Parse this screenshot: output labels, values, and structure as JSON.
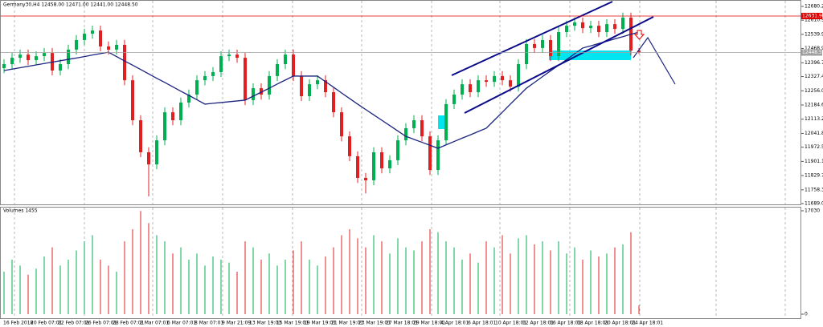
{
  "chart_data": {
    "type": "candlestick",
    "title": "Germany30,H4  12458.00 12471.00 12441.00 12448.50",
    "up_color": "#00b050",
    "down_color": "#e02020",
    "open": [
      12370,
      12390,
      12422,
      12438,
      12410,
      12430,
      12446,
      12358,
      12390,
      12463,
      12511,
      12543,
      12559,
      12479,
      12463,
      12487,
      12309,
      12108,
      11947,
      11886,
      12007,
      12148,
      12108,
      12197,
      12237,
      12309,
      12330,
      12350,
      12430,
      12438,
      12422,
      12209,
      12269,
      12237,
      12330,
      12390,
      12438,
      12330,
      12229,
      12289,
      12309,
      12249,
      12148,
      12027,
      11927,
      11818,
      11806,
      11947,
      11866,
      11907,
      12007,
      12068,
      12108,
      12027,
      11858,
      12007,
      12189,
      12237,
      12289,
      12249,
      12309,
      12301,
      12330,
      12309,
      12277,
      12390,
      12491,
      12471,
      12511,
      12430,
      12551,
      12583,
      12600,
      12571,
      12583,
      12551,
      12591,
      12567,
      12624,
      12458
    ],
    "high": [
      12415,
      12447,
      12463,
      12463,
      12455,
      12471,
      12471,
      12415,
      12488,
      12536,
      12568,
      12584,
      12584,
      12504,
      12512,
      12512,
      12334,
      12133,
      11972,
      12032,
      12173,
      12173,
      12222,
      12262,
      12334,
      12355,
      12375,
      12455,
      12463,
      12463,
      12447,
      12294,
      12294,
      12355,
      12415,
      12463,
      12463,
      12355,
      12314,
      12334,
      12334,
      12274,
      12173,
      12052,
      11952,
      11843,
      11972,
      11972,
      11932,
      12032,
      12093,
      12133,
      12133,
      12052,
      12032,
      12214,
      12262,
      12314,
      12314,
      12334,
      12334,
      12355,
      12355,
      12334,
      12415,
      12516,
      12516,
      12536,
      12536,
      12576,
      12608,
      12625,
      12625,
      12608,
      12608,
      12616,
      12616,
      12649,
      12649,
      12471
    ],
    "low": [
      12345,
      12365,
      12397,
      12385,
      12385,
      12405,
      12333,
      12333,
      12365,
      12438,
      12486,
      12518,
      12454,
      12438,
      12438,
      12284,
      12083,
      11922,
      11725,
      11861,
      11982,
      12083,
      12083,
      12172,
      12212,
      12284,
      12305,
      12325,
      12405,
      12397,
      12184,
      12184,
      12212,
      12212,
      12305,
      12365,
      12305,
      12204,
      12204,
      12264,
      12224,
      12123,
      12002,
      11902,
      11793,
      11740,
      11781,
      11841,
      11841,
      11882,
      11982,
      12043,
      12002,
      11833,
      11833,
      11982,
      12164,
      12212,
      12224,
      12224,
      12276,
      12276,
      12284,
      12252,
      12252,
      12365,
      12446,
      12446,
      12405,
      12405,
      12526,
      12558,
      12546,
      12546,
      12526,
      12526,
      12542,
      12542,
      12433,
      12441
    ],
    "close": [
      12390,
      12422,
      12438,
      12410,
      12430,
      12446,
      12358,
      12390,
      12463,
      12511,
      12543,
      12559,
      12479,
      12463,
      12487,
      12309,
      12108,
      11947,
      11886,
      12007,
      12148,
      12108,
      12197,
      12237,
      12309,
      12330,
      12350,
      12430,
      12438,
      12422,
      12209,
      12269,
      12237,
      12330,
      12390,
      12438,
      12330,
      12229,
      12289,
      12309,
      12249,
      12148,
      12027,
      11927,
      11818,
      11806,
      11947,
      11866,
      11907,
      12007,
      12068,
      12108,
      12027,
      11858,
      12007,
      12189,
      12237,
      12289,
      12249,
      12309,
      12301,
      12330,
      12309,
      12277,
      12390,
      12491,
      12471,
      12511,
      12430,
      12551,
      12583,
      12600,
      12571,
      12583,
      12551,
      12591,
      12567,
      12624,
      12458,
      12448.5
    ],
    "ma": {
      "color": "#1a237e",
      "values": [
        12358,
        12365,
        12372,
        12379,
        12386,
        12393,
        12400,
        12407,
        12414,
        12421,
        12428,
        12436,
        12443,
        12450,
        12428,
        12406,
        12385,
        12363,
        12341,
        12319,
        12298,
        12276,
        12254,
        12233,
        12211,
        12189,
        12193,
        12197,
        12201,
        12205,
        12209,
        12229,
        12249,
        12269,
        12290,
        12310,
        12330,
        12330,
        12330,
        12330,
        12302,
        12274,
        12245,
        12217,
        12189,
        12162,
        12135,
        12108,
        12081,
        12054,
        12027,
        12012,
        11997,
        11982,
        11967,
        11984,
        12001,
        12018,
        12034,
        12051,
        12068,
        12108,
        12148,
        12189,
        12229,
        12269,
        12298,
        12327,
        12356,
        12384,
        12413,
        12442,
        12471,
        12482,
        12494,
        12505,
        12517,
        12528,
        12540,
        12551
      ]
    },
    "ylim": [
      11689.0,
      12680.2
    ],
    "yticks": [
      {
        "value": 12680.2,
        "label": "12680.20"
      },
      {
        "value": 12610.9,
        "label": "12610.90"
      },
      {
        "value": 12539.9,
        "label": "12539.90"
      },
      {
        "value": 12468.9,
        "label": "12468.90"
      },
      {
        "value": 12396.7,
        "label": "12396.70"
      },
      {
        "value": 12327.4,
        "label": "12327.40"
      },
      {
        "value": 12256.0,
        "label": "12256.00"
      },
      {
        "value": 12184.6,
        "label": "12184.60"
      },
      {
        "value": 12113.2,
        "label": "12113.20"
      },
      {
        "value": 12041.8,
        "label": "12041.80"
      },
      {
        "value": 11972.5,
        "label": "11972.50"
      },
      {
        "value": 11901.1,
        "label": "11901.10"
      },
      {
        "value": 11829.7,
        "label": "11829.70"
      },
      {
        "value": 11758.3,
        "label": "11758.30"
      },
      {
        "value": 11689.0,
        "label": "11689.00"
      }
    ],
    "lines": [
      {
        "value": 12631.97,
        "color": "#e00000"
      },
      {
        "value": 12448.5,
        "label": "12448.50",
        "color": "#a0a0a0"
      }
    ],
    "volume": {
      "title": "Volumes 1455",
      "ylim": [
        0,
        17030
      ],
      "yticks": [
        17030,
        0
      ],
      "values": [
        7000,
        9000,
        8000,
        6500,
        7500,
        9500,
        11000,
        8000,
        9000,
        10500,
        12000,
        13000,
        9000,
        8000,
        7000,
        12000,
        14000,
        17000,
        15000,
        13000,
        12000,
        10000,
        11000,
        9000,
        10000,
        8000,
        9500,
        9000,
        8500,
        7000,
        12000,
        11000,
        9000,
        10000,
        8000,
        9000,
        10500,
        12000,
        9000,
        8000,
        9500,
        11000,
        13000,
        14000,
        12500,
        11000,
        13000,
        12000,
        10000,
        12500,
        11000,
        10500,
        12000,
        14000,
        13500,
        12000,
        11000,
        9000,
        10000,
        8500,
        12000,
        11000,
        13000,
        10000,
        12500,
        13000,
        11500,
        12000,
        10500,
        12000,
        10000,
        11000,
        9000,
        10500,
        9500,
        10000,
        11000,
        11500,
        13500,
        1455
      ]
    },
    "x_labels": [
      "16 Feb 2018",
      "20 Feb 07:01",
      "22 Feb 07:01",
      "26 Feb 07:01",
      "28 Feb 07:01",
      "2 Mar 07:01",
      "6 Mar 07:01",
      "8 Mar 07:01",
      "9 Mar 21:09",
      "13 Mar 19:01",
      "15 Mar 19:01",
      "19 Mar 19:01",
      "21 Mar 19:01",
      "23 Mar 19:01",
      "27 Mar 18:01",
      "29 Mar 18:01",
      "4 Apr 18:01",
      "6 Apr 18:01",
      "10 Apr 18:01",
      "12 Apr 18:01",
      "16 Apr 18:01",
      "18 Apr 18:01",
      "20 Apr 18:01",
      "24 Apr 18:01"
    ]
  }
}
